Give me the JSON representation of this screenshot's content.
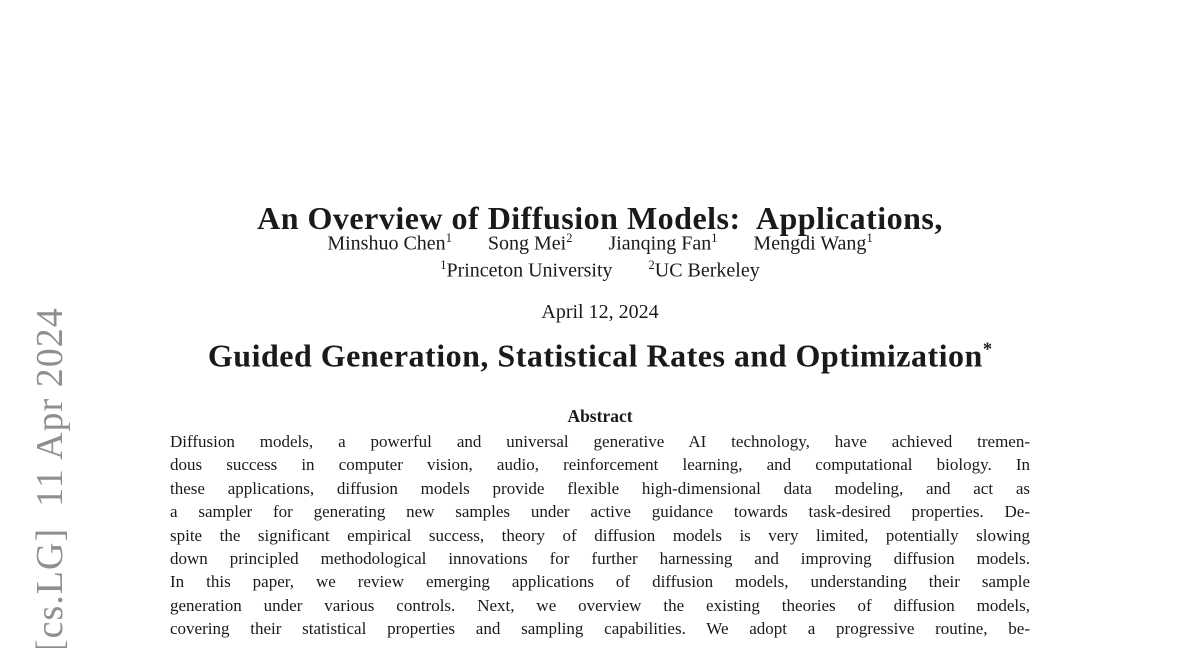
{
  "watermark": {
    "text": "[cs.LG]  11 Apr 2024",
    "color": "#8f8f8f"
  },
  "title": {
    "line1": "An Overview of Diffusion Models:  Applications,",
    "line2": "Guided Generation, Statistical Rates and Optimization",
    "footnote_mark": "*"
  },
  "authors": [
    {
      "name": "Minshuo Chen",
      "affil_mark": "1"
    },
    {
      "name": "Song Mei",
      "affil_mark": "2"
    },
    {
      "name": "Jianqing Fan",
      "affil_mark": "1"
    },
    {
      "name": "Mengdi Wang",
      "affil_mark": "1"
    }
  ],
  "affiliations": [
    {
      "mark": "1",
      "name": "Princeton University"
    },
    {
      "mark": "2",
      "name": "UC Berkeley"
    }
  ],
  "date": "April 12, 2024",
  "abstract": {
    "heading": "Abstract",
    "lines": [
      "Diffusion models, a powerful and universal generative AI technology, have achieved tremen-",
      "dous success in computer vision, audio, reinforcement learning, and computational biology. In",
      "these applications, diffusion models provide flexible high-dimensional data modeling, and act as",
      "a sampler for generating new samples under active guidance towards task-desired properties. De-",
      "spite the significant empirical success, theory of diffusion models is very limited, potentially slowing",
      "down principled methodological innovations for further harnessing and improving diffusion models.",
      "In this paper, we review emerging applications of diffusion models, understanding their sample",
      "generation under various controls. Next, we overview the existing theories of diffusion models,",
      "covering their statistical properties and sampling capabilities. We adopt a progressive routine, be-"
    ]
  }
}
